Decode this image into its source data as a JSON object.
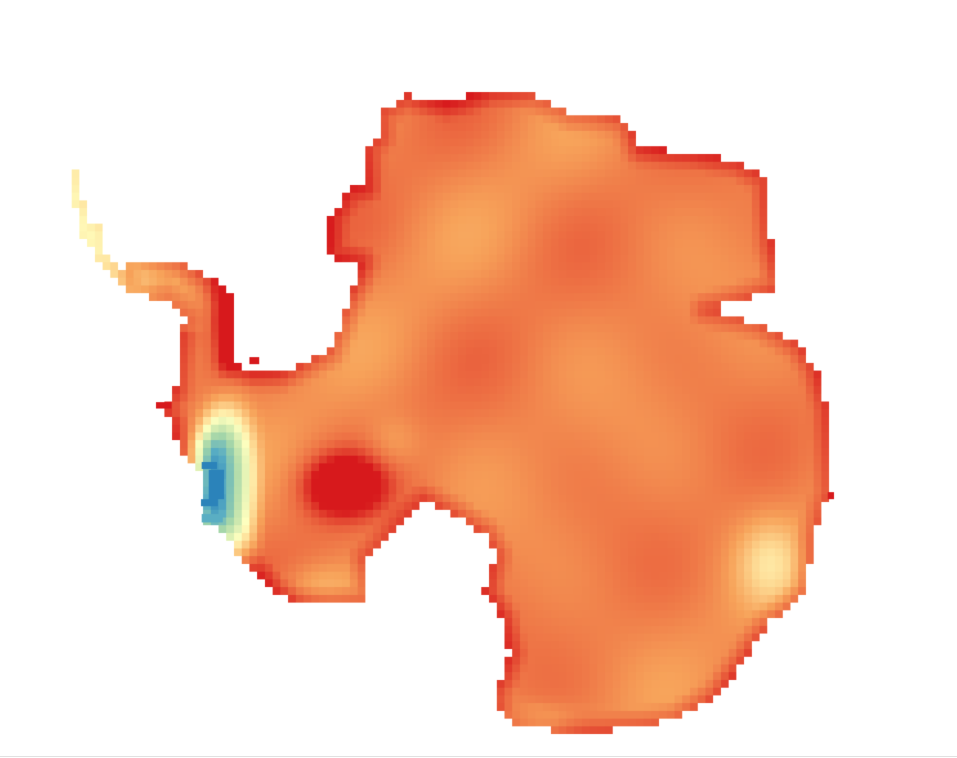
{
  "map": {
    "type": "raster-heatmap",
    "region": "Antarctica",
    "pixelated": true,
    "background": "#ffffff",
    "colormap": [
      "#d7191c",
      "#ec6a41",
      "#f7a35a",
      "#fdd68f",
      "#ffffbf",
      "#d3ebb0",
      "#9fd3a8",
      "#5aaec3",
      "#2b83ba"
    ],
    "legend": false,
    "axes": false
  }
}
